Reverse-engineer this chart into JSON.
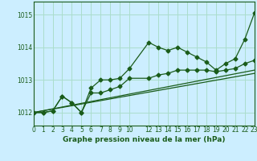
{
  "bg_color": "#cceeff",
  "grid_color": "#aaddcc",
  "line_color": "#1a5c1a",
  "title": "Graphe pression niveau de la mer (hPa)",
  "ylim": [
    1011.6,
    1015.4
  ],
  "yticks": [
    1012,
    1013,
    1014,
    1015
  ],
  "xlim": [
    0,
    23
  ],
  "xticks": [
    0,
    1,
    2,
    3,
    4,
    5,
    6,
    7,
    8,
    9,
    10,
    12,
    13,
    14,
    15,
    16,
    17,
    18,
    19,
    20,
    21,
    22,
    23
  ],
  "series1_x": [
    0,
    1,
    2,
    3,
    4,
    5,
    6,
    7,
    8,
    9,
    10,
    12,
    13,
    14,
    15,
    16,
    17,
    18,
    19,
    20,
    21,
    22,
    23
  ],
  "series1_y": [
    1012.0,
    1012.0,
    1012.05,
    1012.5,
    1012.3,
    1012.0,
    1012.75,
    1013.0,
    1013.0,
    1013.05,
    1013.35,
    1014.15,
    1014.0,
    1013.9,
    1014.0,
    1013.85,
    1013.7,
    1013.55,
    1013.3,
    1013.5,
    1013.65,
    1014.25,
    1015.05
  ],
  "series2_x": [
    0,
    1,
    2,
    3,
    4,
    5,
    6,
    7,
    8,
    9,
    10,
    12,
    13,
    14,
    15,
    16,
    17,
    18,
    19,
    20,
    21,
    22,
    23
  ],
  "series2_y": [
    1012.0,
    1012.0,
    1012.05,
    1012.5,
    1012.3,
    1012.0,
    1012.6,
    1012.6,
    1012.7,
    1012.8,
    1013.05,
    1013.05,
    1013.15,
    1013.2,
    1013.3,
    1013.3,
    1013.3,
    1013.3,
    1013.25,
    1013.3,
    1013.35,
    1013.5,
    1013.6
  ],
  "series3_x": [
    0,
    23
  ],
  "series3_y": [
    1012.0,
    1013.2
  ],
  "series4_x": [
    0,
    23
  ],
  "series4_y": [
    1012.0,
    1013.3
  ]
}
